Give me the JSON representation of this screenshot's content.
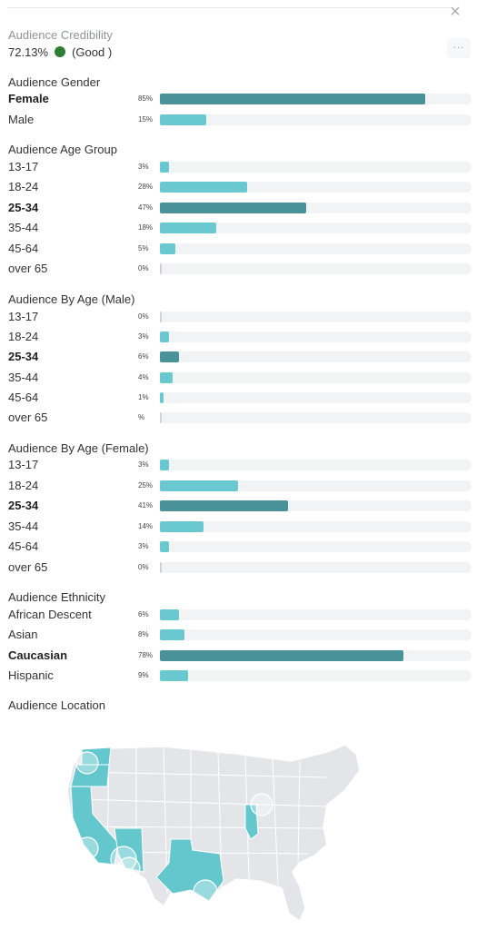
{
  "panel": {
    "close_icon": "close-icon",
    "more_label": "...",
    "more_icon": "more-options-icon"
  },
  "credibility": {
    "title": "Audience Credibility",
    "value": "72.13%",
    "status": "(Good )",
    "status_color": "#2e7d32"
  },
  "colors": {
    "bar_light": "#69c8d0",
    "bar_dark": "#4a929a",
    "track": "#f2f3f5",
    "map_land": "#e3e5e8",
    "map_highlight": "#63c7cd"
  },
  "sections": [
    {
      "title": "Audience Gender",
      "rows": [
        {
          "label": "Female",
          "pct": "85%",
          "value": 85,
          "bold": true
        },
        {
          "label": "Male",
          "pct": "15%",
          "value": 15,
          "bold": false
        }
      ]
    },
    {
      "title": "Audience Age Group",
      "rows": [
        {
          "label": "13-17",
          "pct": "3%",
          "value": 3,
          "bold": false
        },
        {
          "label": "18-24",
          "pct": "28%",
          "value": 28,
          "bold": false
        },
        {
          "label": "25-34",
          "pct": "47%",
          "value": 47,
          "bold": true
        },
        {
          "label": "35-44",
          "pct": "18%",
          "value": 18,
          "bold": false
        },
        {
          "label": "45-64",
          "pct": "5%",
          "value": 5,
          "bold": false
        },
        {
          "label": "over 65",
          "pct": "0%",
          "value": 0,
          "bold": false
        }
      ]
    },
    {
      "title": "Audience By Age (Male)",
      "rows": [
        {
          "label": "13-17",
          "pct": "0%",
          "value": 0,
          "bold": false
        },
        {
          "label": "18-24",
          "pct": "3%",
          "value": 3,
          "bold": false
        },
        {
          "label": "25-34",
          "pct": "6%",
          "value": 6,
          "bold": true
        },
        {
          "label": "35-44",
          "pct": "4%",
          "value": 4,
          "bold": false
        },
        {
          "label": "45-64",
          "pct": "1%",
          "value": 1,
          "bold": false
        },
        {
          "label": "over 65",
          "pct": "%",
          "value": 0,
          "bold": false
        }
      ]
    },
    {
      "title": "Audience By Age (Female)",
      "rows": [
        {
          "label": "13-17",
          "pct": "3%",
          "value": 3,
          "bold": false
        },
        {
          "label": "18-24",
          "pct": "25%",
          "value": 25,
          "bold": false
        },
        {
          "label": "25-34",
          "pct": "41%",
          "value": 41,
          "bold": true
        },
        {
          "label": "35-44",
          "pct": "14%",
          "value": 14,
          "bold": false
        },
        {
          "label": "45-64",
          "pct": "3%",
          "value": 3,
          "bold": false
        },
        {
          "label": "over 65",
          "pct": "0%",
          "value": 0,
          "bold": false
        }
      ]
    },
    {
      "title": "Audience Ethnicity",
      "rows": [
        {
          "label": "African Descent",
          "pct": "6%",
          "value": 6,
          "bold": false
        },
        {
          "label": "Asian",
          "pct": "8%",
          "value": 8,
          "bold": false
        },
        {
          "label": "Caucasian",
          "pct": "78%",
          "value": 78,
          "bold": true
        },
        {
          "label": "Hispanic",
          "pct": "9%",
          "value": 9,
          "bold": false
        }
      ]
    }
  ],
  "location": {
    "title": "Audience Location",
    "map_icon": "us-map-icon",
    "highlighted_states": [
      "Washington",
      "Oregon",
      "California",
      "Arizona",
      "Texas",
      "Illinois"
    ]
  }
}
